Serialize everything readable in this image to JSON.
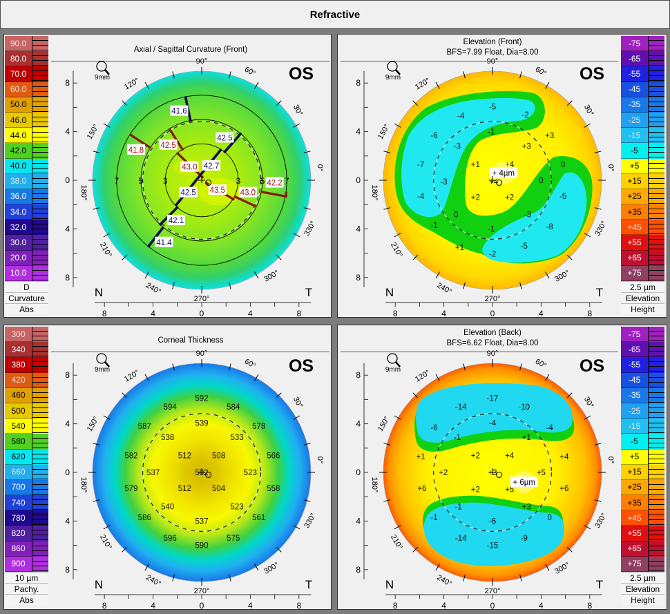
{
  "window": {
    "title": "Refractive"
  },
  "degree_labels": [
    "0°",
    "30°",
    "60°",
    "90°",
    "120°",
    "150°",
    "180°",
    "210°",
    "240°",
    "270°",
    "300°",
    "330°"
  ],
  "axis_tick_labels": [
    "8",
    "4",
    "0",
    "4",
    "8"
  ],
  "common": {
    "eye": "OS",
    "zoom_label": "9mm",
    "nasal": "N",
    "temporal": "T"
  },
  "panels": [
    {
      "id": "axial-curvature",
      "title": [
        "Axial / Sagittal Curvature (Front)"
      ],
      "map_type": "curvature",
      "scale": {
        "entries": [
          {
            "label": "90.0",
            "color": "#c86464"
          },
          {
            "label": "80.0",
            "color": "#a83030"
          },
          {
            "label": "70.0",
            "color": "#c00000"
          },
          {
            "label": "60.0",
            "color": "#e05a10"
          },
          {
            "label": "50.0",
            "color": "#e0a000"
          },
          {
            "label": "46.0",
            "color": "#e8c800"
          },
          {
            "label": "44.0",
            "color": "#ffff00"
          },
          {
            "label": "42.0",
            "color": "#50d020"
          },
          {
            "label": "40.0",
            "color": "#00e8f0"
          },
          {
            "label": "38.0",
            "color": "#20b0f0"
          },
          {
            "label": "36.0",
            "color": "#1878e8"
          },
          {
            "label": "34.0",
            "color": "#2040d8"
          },
          {
            "label": "32.0",
            "color": "#200890"
          },
          {
            "label": "30.0",
            "color": "#5020a0"
          },
          {
            "label": "20.0",
            "color": "#8020b8"
          },
          {
            "label": "10.0",
            "color": "#b030e0"
          }
        ],
        "footer": [
          "D",
          "Curvature",
          "Abs"
        ]
      },
      "ring_labels": [
        {
          "text": "7",
          "x": -7
        },
        {
          "text": "5",
          "x": -5
        },
        {
          "text": "3",
          "x": -3
        },
        {
          "text": "3",
          "x": 3
        },
        {
          "text": "5",
          "x": 5
        },
        {
          "text": "7",
          "x": 7
        }
      ],
      "labels": [
        {
          "text": "41.6",
          "x": -1.85,
          "y": 5.7,
          "color": "#101060"
        },
        {
          "text": "42.5",
          "x": 1.9,
          "y": 3.5,
          "color": "#101060"
        },
        {
          "text": "41.8",
          "x": -5.4,
          "y": 2.5,
          "color": "#a01010"
        },
        {
          "text": "42.5",
          "x": -2.75,
          "y": 2.9,
          "color": "#a01010"
        },
        {
          "text": "43.0",
          "x": -1.0,
          "y": 1.1,
          "color": "#a01010"
        },
        {
          "text": "42.7",
          "x": 0.8,
          "y": 1.2,
          "color": "#101060"
        },
        {
          "text": "42.2",
          "x": 6.0,
          "y": -0.2,
          "color": "#a01010"
        },
        {
          "text": "42.5",
          "x": -1.1,
          "y": -1.0,
          "color": "#101060"
        },
        {
          "text": "43.5",
          "x": 1.3,
          "y": -0.8,
          "color": "#a01010"
        },
        {
          "text": "43.0",
          "x": 3.8,
          "y": -1.0,
          "color": "#a01010"
        },
        {
          "text": "42.1",
          "x": -2.1,
          "y": -3.3,
          "color": "#101060"
        },
        {
          "text": "41.4",
          "x": -3.1,
          "y": -5.1,
          "color": "#101060"
        }
      ]
    },
    {
      "id": "elevation-front",
      "title": [
        "Elevation (Front)",
        "BFS=7.99 Float, Dia=8.00"
      ],
      "map_type": "elevation-front",
      "scale": {
        "entries": [
          {
            "label": "-75",
            "color": "#a020c0"
          },
          {
            "label": "-65",
            "color": "#6010b0"
          },
          {
            "label": "-55",
            "color": "#2020e0"
          },
          {
            "label": "-45",
            "color": "#1850e0"
          },
          {
            "label": "-35",
            "color": "#1878e8"
          },
          {
            "label": "-25",
            "color": "#20a0f0"
          },
          {
            "label": "-15",
            "color": "#20c0f0"
          },
          {
            "label": "-5",
            "color": "#00f0f0"
          },
          {
            "label": "+5",
            "color": "#ffff00"
          },
          {
            "label": "+15",
            "color": "#ffd000"
          },
          {
            "label": "+25",
            "color": "#ffa800"
          },
          {
            "label": "+35",
            "color": "#ff8000"
          },
          {
            "label": "+45",
            "color": "#ff5000"
          },
          {
            "label": "+55",
            "color": "#e01010"
          },
          {
            "label": "+65",
            "color": "#c01030"
          },
          {
            "label": "+75",
            "color": "#904060"
          }
        ],
        "footer": [
          "2.5 µm",
          "Elevation",
          "Height"
        ]
      },
      "peak_label": {
        "text": "+ 4µm"
      },
      "labels": [
        {
          "text": "-5",
          "x": 0,
          "y": 6.06
        },
        {
          "text": "-4",
          "x": -2.6,
          "y": 5.3
        },
        {
          "text": "-2",
          "x": 2.7,
          "y": 5.4
        },
        {
          "text": "-1",
          "x": -0.1,
          "y": 4.0
        },
        {
          "text": "+3",
          "x": 4.7,
          "y": 3.7
        },
        {
          "text": "-6",
          "x": -4.8,
          "y": 3.7
        },
        {
          "text": "-3",
          "x": -2.9,
          "y": 2.8
        },
        {
          "text": "+3",
          "x": 2.8,
          "y": 2.8
        },
        {
          "text": "-7",
          "x": -5.9,
          "y": 1.3
        },
        {
          "text": "+1",
          "x": -1.4,
          "y": 1.3
        },
        {
          "text": "+4",
          "x": 1.4,
          "y": 1.3
        },
        {
          "text": "0",
          "x": 5.8,
          "y": 1.3
        },
        {
          "text": "-3",
          "x": -4.0,
          "y": -0.1
        },
        {
          "text": "+4",
          "x": 0.1,
          "y": -0.1
        },
        {
          "text": "0",
          "x": 4.0,
          "y": 0
        },
        {
          "text": "-4",
          "x": -5.9,
          "y": -1.3
        },
        {
          "text": "+2",
          "x": -1.4,
          "y": -1.4
        },
        {
          "text": "+2",
          "x": 1.4,
          "y": -1.4
        },
        {
          "text": "-5",
          "x": 5.8,
          "y": -1.3
        },
        {
          "text": "0",
          "x": -3.0,
          "y": -2.8
        },
        {
          "text": "-3",
          "x": 2.9,
          "y": -2.8
        },
        {
          "text": "-1",
          "x": -4.8,
          "y": -3.7
        },
        {
          "text": "-1",
          "x": -0.1,
          "y": -4.0
        },
        {
          "text": "-8",
          "x": 4.7,
          "y": -3.8
        },
        {
          "text": "+1",
          "x": -2.7,
          "y": -5.5
        },
        {
          "text": "-5",
          "x": 2.6,
          "y": -5.4
        },
        {
          "text": "-2",
          "x": 0,
          "y": -6.06
        }
      ]
    },
    {
      "id": "corneal-thickness",
      "title": [
        "Corneal Thickness"
      ],
      "map_type": "pachymetry",
      "scale": {
        "entries": [
          {
            "label": "300",
            "color": "#c86464"
          },
          {
            "label": "340",
            "color": "#a83030"
          },
          {
            "label": "380",
            "color": "#c00000"
          },
          {
            "label": "420",
            "color": "#e05a10"
          },
          {
            "label": "460",
            "color": "#e0a000"
          },
          {
            "label": "500",
            "color": "#e8c800"
          },
          {
            "label": "540",
            "color": "#ffff00"
          },
          {
            "label": "580",
            "color": "#50d020"
          },
          {
            "label": "620",
            "color": "#00e8f0"
          },
          {
            "label": "660",
            "color": "#20b0f0"
          },
          {
            "label": "700",
            "color": "#1878e8"
          },
          {
            "label": "740",
            "color": "#2040d8"
          },
          {
            "label": "780",
            "color": "#200890"
          },
          {
            "label": "820",
            "color": "#5020a0"
          },
          {
            "label": "860",
            "color": "#8020b8"
          },
          {
            "label": "900",
            "color": "#b030e0"
          }
        ],
        "footer": [
          "10 µm",
          "Pachy.",
          "Abs"
        ]
      },
      "labels": [
        {
          "text": "592",
          "x": 0,
          "y": 6.1
        },
        {
          "text": "594",
          "x": -2.6,
          "y": 5.4
        },
        {
          "text": "584",
          "x": 2.6,
          "y": 5.4
        },
        {
          "text": "587",
          "x": -4.7,
          "y": 3.8
        },
        {
          "text": "539",
          "x": 0,
          "y": 4.05
        },
        {
          "text": "578",
          "x": 4.7,
          "y": 3.8
        },
        {
          "text": "538",
          "x": -2.8,
          "y": 2.9
        },
        {
          "text": "533",
          "x": 2.9,
          "y": 2.9
        },
        {
          "text": "582",
          "x": -5.8,
          "y": 1.4
        },
        {
          "text": "512",
          "x": -1.4,
          "y": 1.4
        },
        {
          "text": "508",
          "x": 1.4,
          "y": 1.4
        },
        {
          "text": "566",
          "x": 5.9,
          "y": 1.4
        },
        {
          "text": "537",
          "x": -4.0,
          "y": 0
        },
        {
          "text": "502",
          "x": 0,
          "y": 0
        },
        {
          "text": "523",
          "x": 4.0,
          "y": 0
        },
        {
          "text": "579",
          "x": -5.8,
          "y": -1.3
        },
        {
          "text": "512",
          "x": -1.4,
          "y": -1.3
        },
        {
          "text": "504",
          "x": 1.4,
          "y": -1.3
        },
        {
          "text": "558",
          "x": 5.9,
          "y": -1.3
        },
        {
          "text": "540",
          "x": -2.8,
          "y": -2.8
        },
        {
          "text": "523",
          "x": 2.9,
          "y": -2.8
        },
        {
          "text": "586",
          "x": -4.7,
          "y": -3.7
        },
        {
          "text": "561",
          "x": 4.7,
          "y": -3.7
        },
        {
          "text": "537",
          "x": 0,
          "y": -4.0
        },
        {
          "text": "596",
          "x": -2.6,
          "y": -5.4
        },
        {
          "text": "575",
          "x": 2.6,
          "y": -5.4
        },
        {
          "text": "590",
          "x": 0,
          "y": -6.0
        }
      ]
    },
    {
      "id": "elevation-back",
      "title": [
        "Elevation (Back)",
        "BFS=6.62 Float, Dia=8.00"
      ],
      "map_type": "elevation-back",
      "scale": {
        "entries": [
          {
            "label": "-75",
            "color": "#a020c0"
          },
          {
            "label": "-65",
            "color": "#6010b0"
          },
          {
            "label": "-55",
            "color": "#2020e0"
          },
          {
            "label": "-45",
            "color": "#1850e0"
          },
          {
            "label": "-35",
            "color": "#1878e8"
          },
          {
            "label": "-25",
            "color": "#20a0f0"
          },
          {
            "label": "-15",
            "color": "#20c0f0"
          },
          {
            "label": "-5",
            "color": "#00f0f0"
          },
          {
            "label": "+5",
            "color": "#ffff00"
          },
          {
            "label": "+15",
            "color": "#ffd000"
          },
          {
            "label": "+25",
            "color": "#ffa800"
          },
          {
            "label": "+35",
            "color": "#ff8000"
          },
          {
            "label": "+45",
            "color": "#ff5000"
          },
          {
            "label": "+55",
            "color": "#e01010"
          },
          {
            "label": "+65",
            "color": "#c01030"
          },
          {
            "label": "+75",
            "color": "#904060"
          }
        ],
        "footer": [
          "2.5 µm",
          "Elevation",
          "Height"
        ]
      },
      "peak_label": {
        "text": "+ 6µm",
        "x": 2.6,
        "y": -0.8
      },
      "labels": [
        {
          "text": "-17",
          "x": 0,
          "y": 6.1
        },
        {
          "text": "-14",
          "x": -2.6,
          "y": 5.4
        },
        {
          "text": "-10",
          "x": 2.6,
          "y": 5.4
        },
        {
          "text": "-6",
          "x": -4.8,
          "y": 3.7
        },
        {
          "text": "-4",
          "x": 0,
          "y": 4.05
        },
        {
          "text": "-4",
          "x": 4.7,
          "y": 3.7
        },
        {
          "text": "-1",
          "x": -2.9,
          "y": 2.9
        },
        {
          "text": "+1",
          "x": 2.8,
          "y": 2.9
        },
        {
          "text": "+1",
          "x": -5.9,
          "y": 1.3
        },
        {
          "text": "+2",
          "x": -1.4,
          "y": 1.4
        },
        {
          "text": "+4",
          "x": 1.4,
          "y": 1.4
        },
        {
          "text": "+4",
          "x": 5.9,
          "y": 1.3
        },
        {
          "text": "+2",
          "x": -4.05,
          "y": 0
        },
        {
          "text": "+3",
          "x": 0,
          "y": 0
        },
        {
          "text": "+5",
          "x": 4.0,
          "y": 0
        },
        {
          "text": "+6",
          "x": -5.8,
          "y": -1.3
        },
        {
          "text": "+2",
          "x": -1.4,
          "y": -1.4
        },
        {
          "text": "+5",
          "x": 1.4,
          "y": -1.4
        },
        {
          "text": "+6",
          "x": 5.9,
          "y": -1.3
        },
        {
          "text": "-1",
          "x": -2.8,
          "y": -2.8
        },
        {
          "text": "+3",
          "x": 2.8,
          "y": -2.8
        },
        {
          "text": "-1",
          "x": -4.8,
          "y": -3.7
        },
        {
          "text": "-6",
          "x": 0,
          "y": -4.0
        },
        {
          "text": "0",
          "x": 4.7,
          "y": -3.7
        },
        {
          "text": "-14",
          "x": -2.6,
          "y": -5.4
        },
        {
          "text": "-9",
          "x": 2.6,
          "y": -5.4
        },
        {
          "text": "-15",
          "x": 0,
          "y": -6.0
        }
      ]
    }
  ]
}
